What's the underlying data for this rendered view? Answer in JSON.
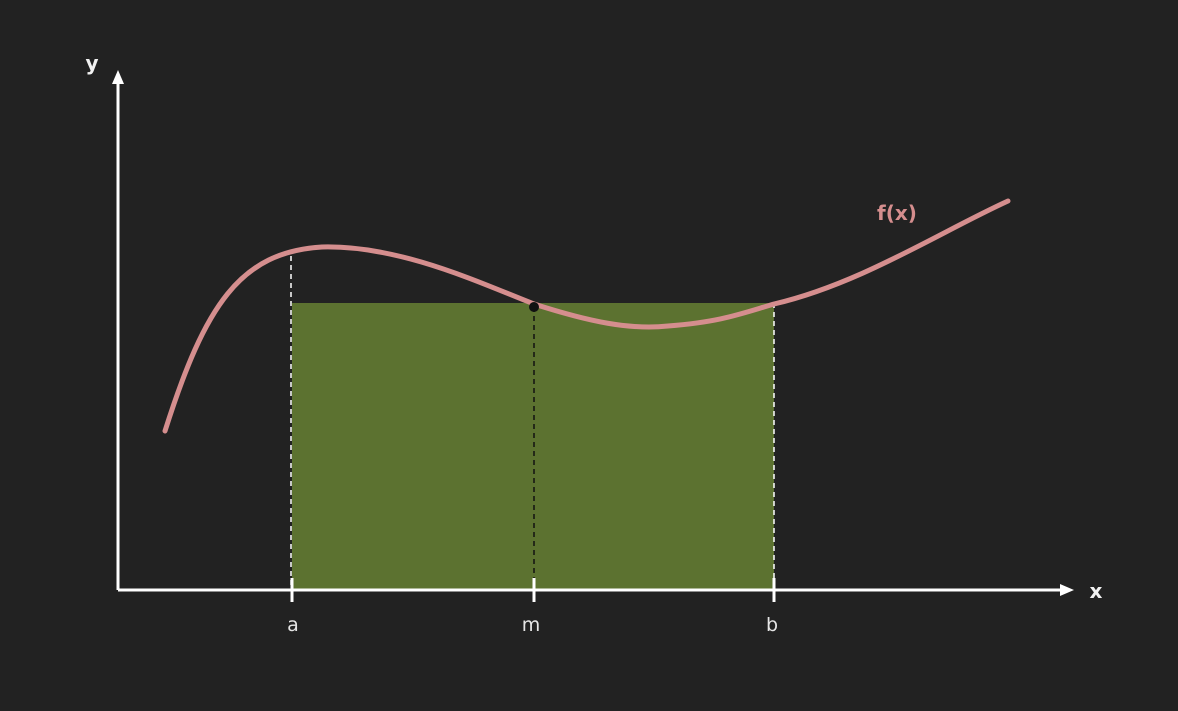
{
  "axes": {
    "x_label": "x",
    "y_label": "y"
  },
  "curve": {
    "label": "f(x)"
  },
  "ticks": {
    "a": "a",
    "m": "m",
    "b": "b"
  },
  "colors": {
    "background": "#222222",
    "axis": "#ffffff",
    "curve": "#d58e8e",
    "rectangle": "#5c7230",
    "midpoint": "#111111"
  }
}
